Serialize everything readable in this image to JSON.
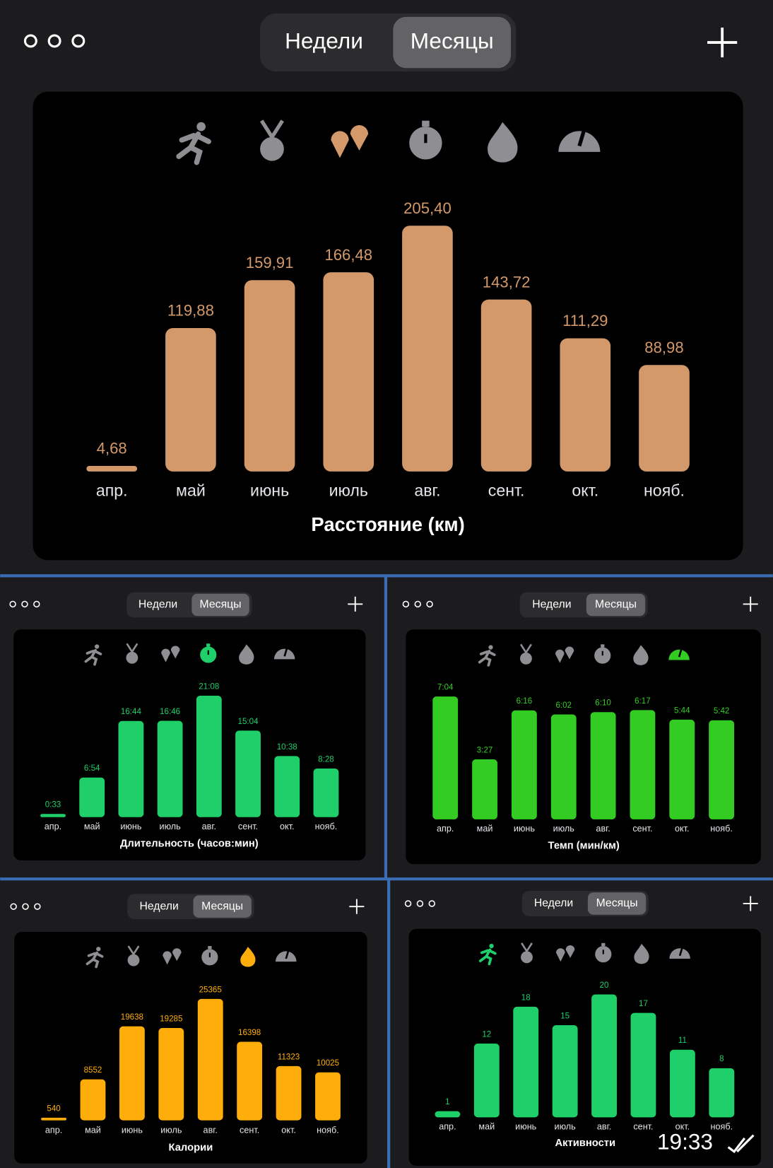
{
  "chart_data": [
    {
      "type": "bar",
      "title": "Расстояние (км)",
      "categories": [
        "апр.",
        "май",
        "июнь",
        "июль",
        "авг.",
        "сент.",
        "окт.",
        "нояб."
      ],
      "values": [
        4.68,
        119.88,
        159.91,
        166.48,
        205.4,
        143.72,
        111.29,
        88.98
      ],
      "value_labels": [
        "4,68",
        "119,88",
        "159,91",
        "166,48",
        "205,40",
        "143,72",
        "111,29",
        "88,98"
      ],
      "color": "#d4996a"
    },
    {
      "type": "bar",
      "title": "Длительность (часов:мин)",
      "categories": [
        "апр.",
        "май",
        "июнь",
        "июль",
        "авг.",
        "сент.",
        "окт.",
        "нояб."
      ],
      "values": [
        33,
        414,
        1004,
        1006,
        1268,
        904,
        638,
        508
      ],
      "value_labels": [
        "0:33",
        "6:54",
        "16:44",
        "16:46",
        "21:08",
        "15:04",
        "10:38",
        "8:28"
      ],
      "color": "#1fcf6a"
    },
    {
      "type": "bar",
      "title": "Темп (мин/км)",
      "categories": [
        "апр.",
        "май",
        "июнь",
        "июль",
        "авг.",
        "сент.",
        "окт.",
        "нояб."
      ],
      "values": [
        424,
        207,
        376,
        362,
        370,
        377,
        344,
        342
      ],
      "value_labels": [
        "7:04",
        "3:27",
        "6:16",
        "6:02",
        "6:10",
        "6:17",
        "5:44",
        "5:42"
      ],
      "color": "#33cc22"
    },
    {
      "type": "bar",
      "title": "Калории",
      "categories": [
        "апр.",
        "май",
        "июнь",
        "июль",
        "авг.",
        "сент.",
        "окт.",
        "нояб."
      ],
      "values": [
        540,
        8552,
        19638,
        19285,
        25365,
        16398,
        11323,
        10025
      ],
      "color": "#ffad0b"
    },
    {
      "type": "bar",
      "title": "Активности",
      "categories": [
        "апр.",
        "май",
        "июнь",
        "июль",
        "авг.",
        "сент.",
        "окт.",
        "нояб."
      ],
      "values": [
        1,
        12,
        18,
        15,
        20,
        17,
        11,
        8
      ],
      "color": "#1fcf6a"
    }
  ],
  "ui": {
    "tabs": [
      "Недели",
      "Месяцы"
    ]
  },
  "status_bar": {
    "time": "19:33"
  }
}
